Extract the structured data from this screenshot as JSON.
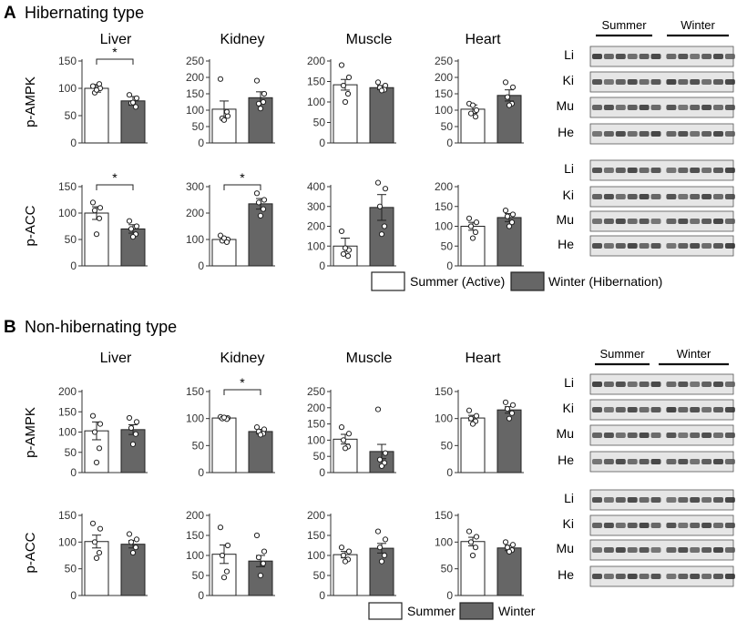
{
  "panel_a": {
    "letter": "A",
    "title": "Hibernating type",
    "legend": {
      "summer": "Summer (Active)",
      "winter": "Winter (Hibernation)"
    }
  },
  "panel_b": {
    "letter": "B",
    "title": "Non-hibernating type",
    "legend": {
      "summer": "Summer",
      "winter": "Winter"
    }
  },
  "blot_headers": {
    "summer": "Summer",
    "winter": "Winter"
  },
  "blot_rows": [
    "Li",
    "Ki",
    "Mu",
    "He"
  ],
  "row_labels": {
    "ampk": "p-AMPK",
    "acc": "p-ACC"
  },
  "organs": [
    "Liver",
    "Kidney",
    "Muscle",
    "Heart"
  ],
  "significance_mark": "*",
  "colors": {
    "summer": "#ffffff",
    "winter": "#666666",
    "bar_edge": "#222222"
  },
  "chart_data": [
    {
      "type": "bar",
      "panel": "A",
      "row": "p-AMPK",
      "organ": "Liver",
      "ylim": [
        0,
        150
      ],
      "yticks": [
        0,
        50,
        100,
        150
      ],
      "series": [
        {
          "name": "Summer (Active)",
          "value": 100,
          "err": 7,
          "points": [
            104,
            100,
            92,
            108,
            97
          ]
        },
        {
          "name": "Winter (Hibernation)",
          "value": 77,
          "err": 8,
          "points": [
            88,
            82,
            73,
            66,
            74
          ]
        }
      ],
      "significant": true
    },
    {
      "type": "bar",
      "panel": "A",
      "row": "p-AMPK",
      "organ": "Kidney",
      "ylim": [
        0,
        250
      ],
      "yticks": [
        0,
        50,
        100,
        150,
        200,
        250
      ],
      "series": [
        {
          "name": "Summer (Active)",
          "value": 103,
          "err": 25,
          "points": [
            195,
            82,
            75,
            95,
            70
          ]
        },
        {
          "name": "Winter (Hibernation)",
          "value": 138,
          "err": 18,
          "points": [
            190,
            150,
            120,
            125,
            105
          ]
        }
      ],
      "significant": false
    },
    {
      "type": "bar",
      "panel": "A",
      "row": "p-AMPK",
      "organ": "Muscle",
      "ylim": [
        0,
        200
      ],
      "yticks": [
        0,
        50,
        100,
        150,
        200
      ],
      "series": [
        {
          "name": "Summer (Active)",
          "value": 142,
          "err": 13,
          "points": [
            190,
            160,
            140,
            120,
            100
          ]
        },
        {
          "name": "Winter (Hibernation)",
          "value": 135,
          "err": 5,
          "points": [
            148,
            140,
            135,
            130,
            128
          ]
        }
      ],
      "significant": false
    },
    {
      "type": "bar",
      "panel": "A",
      "row": "p-AMPK",
      "organ": "Heart",
      "ylim": [
        0,
        250
      ],
      "yticks": [
        0,
        50,
        100,
        150,
        200,
        250
      ],
      "series": [
        {
          "name": "Summer (Active)",
          "value": 103,
          "err": 13,
          "points": [
            120,
            100,
            90,
            80,
            115
          ]
        },
        {
          "name": "Winter (Hibernation)",
          "value": 145,
          "err": 17,
          "points": [
            185,
            170,
            140,
            120,
            115
          ]
        }
      ],
      "significant": false
    },
    {
      "type": "bar",
      "panel": "A",
      "row": "p-ACC",
      "organ": "Liver",
      "ylim": [
        0,
        150
      ],
      "yticks": [
        0,
        50,
        100,
        150
      ],
      "series": [
        {
          "name": "Summer (Active)",
          "value": 100,
          "err": 12,
          "points": [
            120,
            110,
            105,
            90,
            60
          ]
        },
        {
          "name": "Winter (Hibernation)",
          "value": 70,
          "err": 8,
          "points": [
            85,
            75,
            70,
            60,
            55
          ]
        }
      ],
      "significant": true
    },
    {
      "type": "bar",
      "panel": "A",
      "row": "p-ACC",
      "organ": "Kidney",
      "ylim": [
        0,
        300
      ],
      "yticks": [
        0,
        100,
        200,
        300
      ],
      "series": [
        {
          "name": "Summer (Active)",
          "value": 100,
          "err": 7,
          "points": [
            115,
            100,
            95,
            90,
            105
          ]
        },
        {
          "name": "Winter (Hibernation)",
          "value": 235,
          "err": 20,
          "points": [
            275,
            250,
            240,
            215,
            190
          ]
        }
      ],
      "significant": true
    },
    {
      "type": "bar",
      "panel": "A",
      "row": "p-ACC",
      "organ": "Muscle",
      "ylim": [
        0,
        400
      ],
      "yticks": [
        0,
        100,
        200,
        300,
        400
      ],
      "series": [
        {
          "name": "Summer (Active)",
          "value": 100,
          "err": 40,
          "points": [
            175,
            80,
            60,
            50,
            90
          ]
        },
        {
          "name": "Winter (Hibernation)",
          "value": 295,
          "err": 65,
          "points": [
            420,
            390,
            300,
            200,
            160
          ]
        }
      ],
      "significant": false
    },
    {
      "type": "bar",
      "panel": "A",
      "row": "p-ACC",
      "organ": "Heart",
      "ylim": [
        0,
        200
      ],
      "yticks": [
        0,
        50,
        100,
        150,
        200
      ],
      "series": [
        {
          "name": "Summer (Active)",
          "value": 100,
          "err": 10,
          "points": [
            120,
            110,
            100,
            85,
            70
          ]
        },
        {
          "name": "Winter (Hibernation)",
          "value": 122,
          "err": 10,
          "points": [
            140,
            130,
            125,
            110,
            100
          ]
        }
      ],
      "significant": false
    },
    {
      "type": "bar",
      "panel": "B",
      "row": "p-AMPK",
      "organ": "Liver",
      "ylim": [
        0,
        200
      ],
      "yticks": [
        0,
        50,
        100,
        150,
        200
      ],
      "series": [
        {
          "name": "Summer",
          "value": 103,
          "err": 22,
          "points": [
            140,
            120,
            100,
            60,
            25
          ]
        },
        {
          "name": "Winter",
          "value": 106,
          "err": 12,
          "points": [
            135,
            125,
            110,
            95,
            70
          ]
        }
      ],
      "significant": false
    },
    {
      "type": "bar",
      "panel": "B",
      "row": "p-AMPK",
      "organ": "Kidney",
      "ylim": [
        0,
        150
      ],
      "yticks": [
        0,
        50,
        100,
        150
      ],
      "series": [
        {
          "name": "Summer",
          "value": 101,
          "err": 2,
          "points": [
            103,
            101,
            100,
            99,
            102
          ]
        },
        {
          "name": "Winter",
          "value": 76,
          "err": 4,
          "points": [
            84,
            80,
            76,
            72,
            70
          ]
        }
      ],
      "significant": true
    },
    {
      "type": "bar",
      "panel": "B",
      "row": "p-AMPK",
      "organ": "Muscle",
      "ylim": [
        0,
        250
      ],
      "yticks": [
        0,
        50,
        100,
        150,
        200,
        250
      ],
      "series": [
        {
          "name": "Summer",
          "value": 103,
          "err": 15,
          "points": [
            140,
            120,
            100,
            80,
            75
          ]
        },
        {
          "name": "Winter",
          "value": 65,
          "err": 22,
          "points": [
            195,
            60,
            40,
            30,
            20
          ]
        }
      ],
      "significant": false
    },
    {
      "type": "bar",
      "panel": "B",
      "row": "p-AMPK",
      "organ": "Heart",
      "ylim": [
        0,
        150
      ],
      "yticks": [
        0,
        50,
        100,
        150
      ],
      "series": [
        {
          "name": "Summer",
          "value": 101,
          "err": 5,
          "points": [
            115,
            105,
            100,
            95,
            90
          ]
        },
        {
          "name": "Winter",
          "value": 116,
          "err": 6,
          "points": [
            130,
            125,
            118,
            110,
            100
          ]
        }
      ],
      "significant": false
    },
    {
      "type": "bar",
      "panel": "B",
      "row": "p-ACC",
      "organ": "Liver",
      "ylim": [
        0,
        150
      ],
      "yticks": [
        0,
        50,
        100,
        150
      ],
      "series": [
        {
          "name": "Summer",
          "value": 101,
          "err": 12,
          "points": [
            135,
            125,
            100,
            80,
            70
          ]
        },
        {
          "name": "Winter",
          "value": 96,
          "err": 7,
          "points": [
            115,
            105,
            100,
            90,
            80
          ]
        }
      ],
      "significant": false
    },
    {
      "type": "bar",
      "panel": "B",
      "row": "p-ACC",
      "organ": "Kidney",
      "ylim": [
        0,
        200
      ],
      "yticks": [
        0,
        50,
        100,
        150,
        200
      ],
      "series": [
        {
          "name": "Summer",
          "value": 103,
          "err": 23,
          "points": [
            170,
            125,
            100,
            60,
            45
          ]
        },
        {
          "name": "Winter",
          "value": 86,
          "err": 14,
          "points": [
            150,
            110,
            95,
            80,
            50
          ]
        }
      ],
      "significant": false
    },
    {
      "type": "bar",
      "panel": "B",
      "row": "p-ACC",
      "organ": "Muscle",
      "ylim": [
        0,
        200
      ],
      "yticks": [
        0,
        50,
        100,
        150,
        200
      ],
      "series": [
        {
          "name": "Summer",
          "value": 102,
          "err": 8,
          "points": [
            120,
            110,
            100,
            90,
            85
          ]
        },
        {
          "name": "Winter",
          "value": 118,
          "err": 12,
          "points": [
            160,
            140,
            120,
            100,
            85
          ]
        }
      ],
      "significant": false
    },
    {
      "type": "bar",
      "panel": "B",
      "row": "p-ACC",
      "organ": "Heart",
      "ylim": [
        0,
        150
      ],
      "yticks": [
        0,
        50,
        100,
        150
      ],
      "series": [
        {
          "name": "Summer",
          "value": 101,
          "err": 8,
          "points": [
            120,
            110,
            100,
            90,
            75
          ]
        },
        {
          "name": "Winter",
          "value": 89,
          "err": 5,
          "points": [
            100,
            95,
            90,
            85,
            82
          ]
        }
      ],
      "significant": false
    }
  ]
}
